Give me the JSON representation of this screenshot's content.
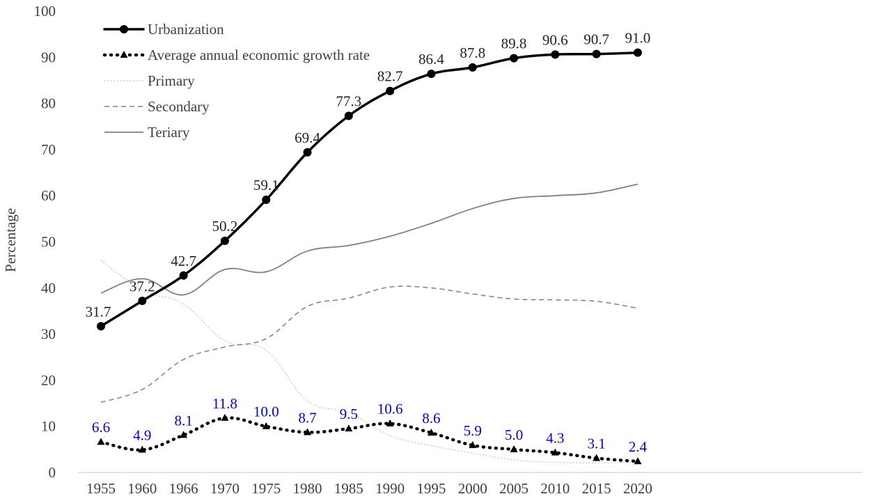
{
  "chart_data": {
    "type": "line",
    "title": "",
    "xlabel": "",
    "ylabel": "Percentage",
    "ylim": [
      0,
      100
    ],
    "yticks": [
      "0",
      "10",
      "20",
      "30",
      "40",
      "50",
      "60",
      "70",
      "80",
      "90",
      "100"
    ],
    "categories": [
      "1955",
      "1960",
      "1966",
      "1970",
      "1975",
      "1980",
      "1985",
      "1990",
      "1995",
      "2000",
      "2005",
      "2010",
      "2015",
      "2020"
    ],
    "legend_position": "top-left",
    "series": [
      {
        "name": "Urbanization",
        "key": "urbanization",
        "color": "#000000",
        "style": "solid-thick-circle",
        "values": [
          31.7,
          37.2,
          42.7,
          50.2,
          59.1,
          69.4,
          77.3,
          82.7,
          86.4,
          87.8,
          89.8,
          90.6,
          90.7,
          91.0
        ],
        "labels": [
          "31.7",
          "37.2",
          "42.7",
          "50.2",
          "59.1",
          "69.4",
          "77.3",
          "82.7",
          "86.4",
          "87.8",
          "89.8",
          "90.6",
          "90.7",
          "91.0"
        ],
        "label_color": "#222222"
      },
      {
        "name": "Average annual economic growth rate",
        "key": "growth",
        "color": "#000000",
        "style": "dotted-thick-triangle",
        "values": [
          6.6,
          4.9,
          8.1,
          11.8,
          10.0,
          8.7,
          9.5,
          10.6,
          8.6,
          5.9,
          5.0,
          4.3,
          3.1,
          2.4
        ],
        "labels": [
          "6.6",
          "4.9",
          "8.1",
          "11.8",
          "10.0",
          "8.7",
          "9.5",
          "10.6",
          "8.6",
          "5.9",
          "5.0",
          "4.3",
          "3.1",
          "2.4"
        ],
        "label_color": "#0000ee"
      },
      {
        "name": "Primary",
        "key": "primary",
        "color": "#bfbfbf",
        "style": "dotted-thin",
        "values": [
          46.0,
          39.5,
          36.5,
          28.5,
          26.5,
          15.5,
          13.0,
          8.0,
          5.8,
          4.2,
          2.7,
          2.2,
          2.1,
          2.2
        ]
      },
      {
        "name": "Secondary",
        "key": "secondary",
        "color": "#808080",
        "style": "dashed",
        "values": [
          15.2,
          18.0,
          24.5,
          27.2,
          29.0,
          36.0,
          37.8,
          40.2,
          40.0,
          38.7,
          37.6,
          37.4,
          37.1,
          35.6
        ]
      },
      {
        "name": "Teriary",
        "key": "tertiary",
        "color": "#808080",
        "style": "solid-thin",
        "values": [
          38.9,
          42.0,
          38.5,
          44.0,
          43.5,
          48.0,
          49.2,
          51.2,
          54.0,
          57.2,
          59.4,
          60.0,
          60.6,
          62.5
        ]
      }
    ]
  }
}
